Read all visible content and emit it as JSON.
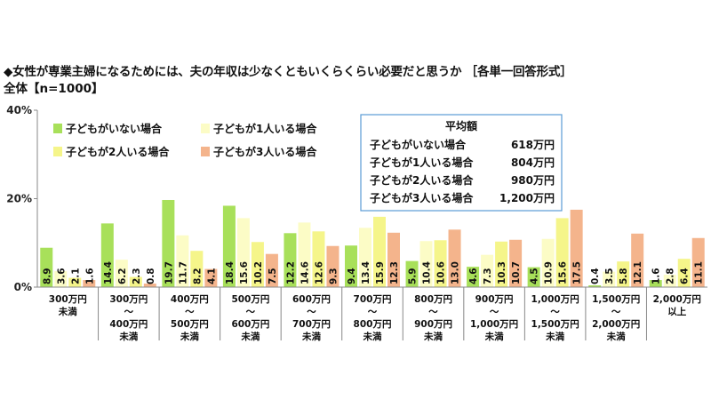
{
  "title": "◆女性が専業主婦になるためには、夫の年収は少なくともいくらくらい必要だと思うか ［各単一回答形式］",
  "subtitle": "全体【n=1000】",
  "colors": {
    "series": [
      "#a8e05a",
      "#fcfcc6",
      "#f5f58a",
      "#f4b48c"
    ],
    "avg_border": "#5b9bd5",
    "axis": "#888888"
  },
  "chart_data": {
    "type": "bar",
    "ylim": [
      0,
      40
    ],
    "yticks": [
      "0%",
      "20%",
      "40%"
    ],
    "ytick_values": [
      0,
      20,
      40
    ],
    "legend_position": "top-left",
    "categories": [
      [
        "300万円",
        "未満"
      ],
      [
        "300万円",
        "～",
        "400万円",
        "未満"
      ],
      [
        "400万円",
        "～",
        "500万円",
        "未満"
      ],
      [
        "500万円",
        "～",
        "600万円",
        "未満"
      ],
      [
        "600万円",
        "～",
        "700万円",
        "未満"
      ],
      [
        "700万円",
        "～",
        "800万円",
        "未満"
      ],
      [
        "800万円",
        "～",
        "900万円",
        "未満"
      ],
      [
        "900万円",
        "～",
        "1,000万円",
        "未満"
      ],
      [
        "1,000万円",
        "～",
        "1,500万円",
        "未満"
      ],
      [
        "1,500万円",
        "～",
        "2,000万円",
        "未満"
      ],
      [
        "2,000万円",
        "以上"
      ]
    ],
    "series": [
      {
        "name": "子どもがいない場合",
        "values": [
          8.9,
          14.4,
          19.7,
          18.4,
          12.2,
          9.4,
          5.9,
          4.6,
          4.5,
          0.4,
          1.6
        ]
      },
      {
        "name": "子どもが1人いる場合",
        "values": [
          3.6,
          6.2,
          11.7,
          15.6,
          14.6,
          13.4,
          10.4,
          7.3,
          10.9,
          3.5,
          2.8
        ]
      },
      {
        "name": "子どもが2人いる場合",
        "values": [
          2.1,
          2.3,
          8.2,
          10.2,
          12.6,
          15.9,
          10.6,
          10.3,
          15.6,
          5.8,
          6.4
        ]
      },
      {
        "name": "子どもが3人いる場合",
        "values": [
          1.6,
          0.8,
          4.1,
          7.5,
          9.3,
          12.3,
          13.0,
          10.7,
          17.5,
          12.1,
          11.1
        ]
      }
    ],
    "value_labels": [
      [
        "8.9",
        "14.4",
        "19.7",
        "18.4",
        "12.2",
        "9.4",
        "5.9",
        "4.6",
        "4.5",
        "0.4",
        "1.6"
      ],
      [
        "3.6",
        "6.2",
        "11.7",
        "15.6",
        "14.6",
        "13.4",
        "10.4",
        "7.3",
        "10.9",
        "3.5",
        "2.8"
      ],
      [
        "2.1",
        "2.3",
        "8.2",
        "10.2",
        "12.6",
        "15.9",
        "10.6",
        "10.3",
        "15.6",
        "5.8",
        "6.4"
      ],
      [
        "1.6",
        "0.8",
        "4.1",
        "7.5",
        "9.3",
        "12.3",
        "13.0",
        "10.7",
        "17.5",
        "12.1",
        "11.1"
      ]
    ],
    "averages": {
      "title": "平均額",
      "items": [
        {
          "label": "子どもがいない場合",
          "value": "618万円"
        },
        {
          "label": "子どもが1人いる場合",
          "value": "804万円"
        },
        {
          "label": "子どもが2人いる場合",
          "value": "980万円"
        },
        {
          "label": "子どもが3人いる場合",
          "value": "1,200万円"
        }
      ]
    }
  }
}
